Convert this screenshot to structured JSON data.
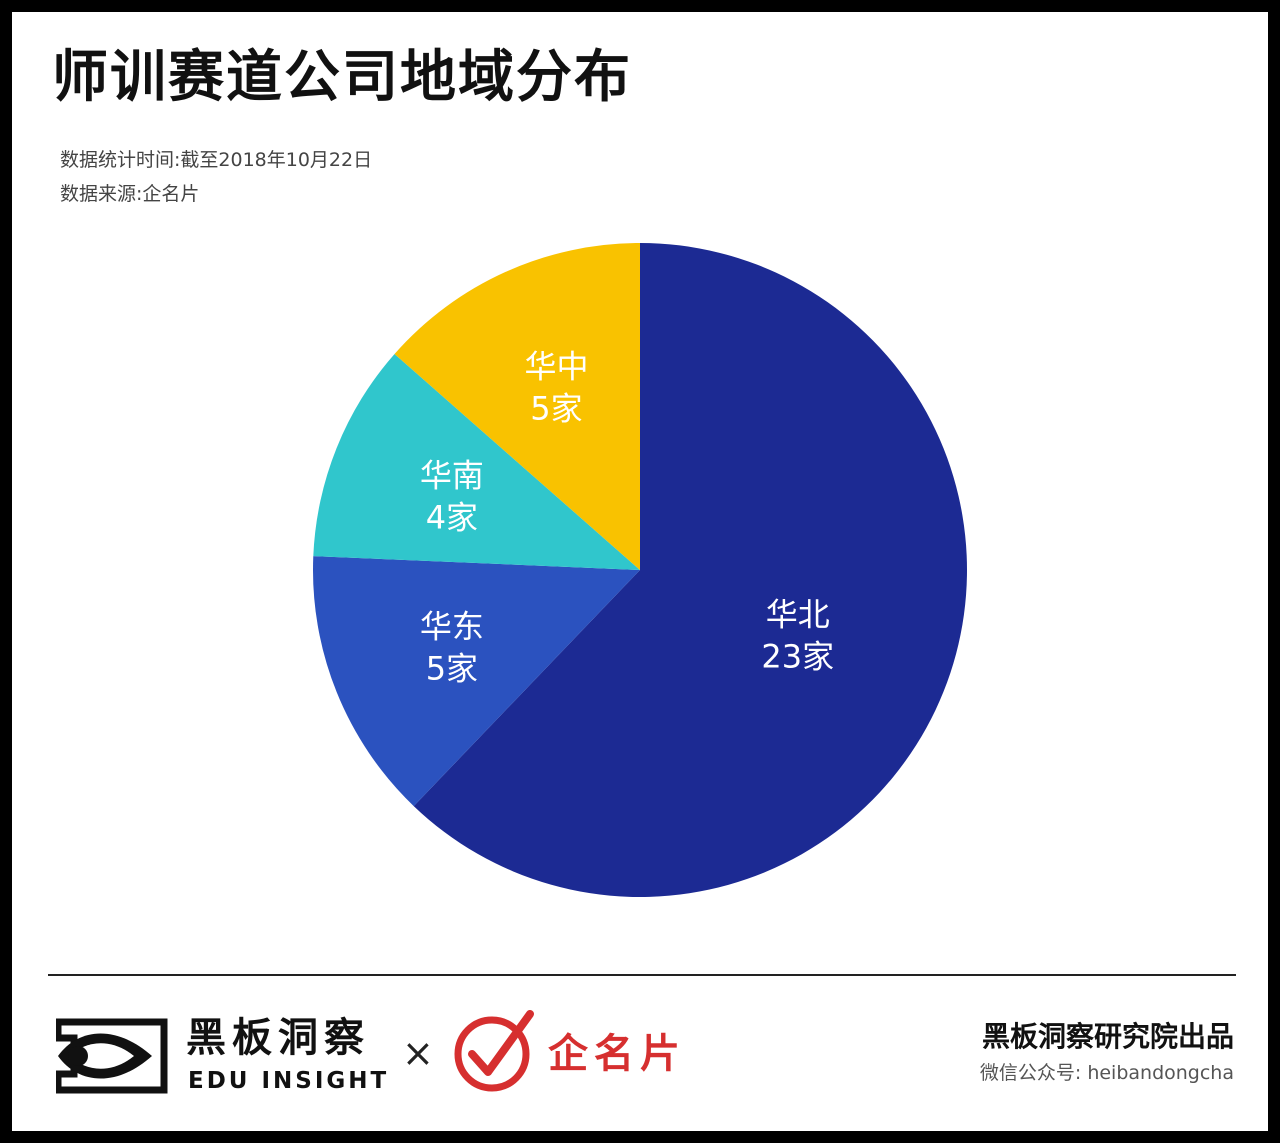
{
  "header": {
    "title": "师训赛道公司地域分布",
    "date_note": "数据统计时间:截至2018年10月22日",
    "source_note": "数据来源:企名片"
  },
  "chart_data": {
    "type": "pie",
    "title": "师训赛道公司地域分布",
    "start_angle_deg": 0,
    "direction": "clockwise",
    "slices": [
      {
        "label": "华北",
        "value": 23,
        "value_label": "23家",
        "color": "#1c2a93"
      },
      {
        "label": "华东",
        "value": 5,
        "value_label": "5家",
        "color": "#2b52bf"
      },
      {
        "label": "华南",
        "value": 4,
        "value_label": "4家",
        "color": "#30c6cc"
      },
      {
        "label": "华中",
        "value": 5,
        "value_label": "5家",
        "color": "#f9c200"
      }
    ]
  },
  "footer": {
    "brand_zh": "黑板洞察",
    "brand_en": "EDU INSIGHT",
    "times": "×",
    "partner": "企名片",
    "credit": "黑板洞察研究院出品",
    "wechat": "微信公众号: heibandongcha"
  },
  "colors": {
    "frame": "#000000",
    "brand_red": "#d62f2f"
  },
  "icons": {
    "brand_logo": "eye-frame-logo",
    "partner_logo": "red-check-circle-logo"
  }
}
